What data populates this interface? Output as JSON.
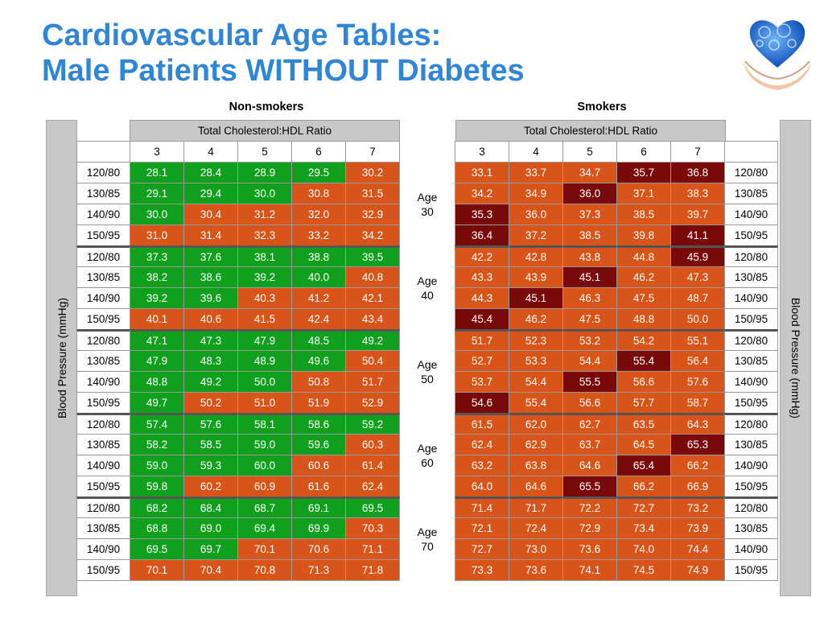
{
  "title": {
    "line1": "Cardiovascular Age Tables:",
    "line2": "Male Patients WITHOUT Diabetes"
  },
  "colors": {
    "title": "#2f86d6",
    "green": "#11a01e",
    "orange": "#d95418",
    "darkred": "#7a0a0a",
    "header_gray": "#c8c8c8"
  },
  "logo_icon": "heart-of-gears-in-hands",
  "groups": {
    "non_smokers": "Non-smokers",
    "smokers": "Smokers"
  },
  "header": {
    "ratio_label": "Total Cholesterol:HDL Ratio",
    "ratios": [
      "3",
      "4",
      "5",
      "6",
      "7"
    ]
  },
  "side_label": "Blood Pressure (mmHg)",
  "bp_levels": [
    "120/80",
    "130/85",
    "140/90",
    "150/95"
  ],
  "age_label_word": "Age",
  "ages": [
    {
      "age": "30",
      "non_smokers": [
        [
          [
            "28.1",
            "g"
          ],
          [
            "28.4",
            "g"
          ],
          [
            "28.9",
            "g"
          ],
          [
            "29.5",
            "g"
          ],
          [
            "30.2",
            "o"
          ]
        ],
        [
          [
            "29.1",
            "g"
          ],
          [
            "29.4",
            "g"
          ],
          [
            "30.0",
            "g"
          ],
          [
            "30.8",
            "o"
          ],
          [
            "31.5",
            "o"
          ]
        ],
        [
          [
            "30.0",
            "g"
          ],
          [
            "30.4",
            "o"
          ],
          [
            "31.2",
            "o"
          ],
          [
            "32.0",
            "o"
          ],
          [
            "32.9",
            "o"
          ]
        ],
        [
          [
            "31.0",
            "o"
          ],
          [
            "31.4",
            "o"
          ],
          [
            "32.3",
            "o"
          ],
          [
            "33.2",
            "o"
          ],
          [
            "34.2",
            "o"
          ]
        ]
      ],
      "smokers": [
        [
          [
            "33.1",
            "o"
          ],
          [
            "33.7",
            "o"
          ],
          [
            "34.7",
            "o"
          ],
          [
            "35.7",
            "r"
          ],
          [
            "36.8",
            "r"
          ]
        ],
        [
          [
            "34.2",
            "o"
          ],
          [
            "34.9",
            "o"
          ],
          [
            "36.0",
            "r"
          ],
          [
            "37.1",
            "o"
          ],
          [
            "38.3",
            "o"
          ]
        ],
        [
          [
            "35.3",
            "r"
          ],
          [
            "36.0",
            "o"
          ],
          [
            "37.3",
            "o"
          ],
          [
            "38.5",
            "o"
          ],
          [
            "39.7",
            "o"
          ]
        ],
        [
          [
            "36.4",
            "r"
          ],
          [
            "37.2",
            "o"
          ],
          [
            "38.5",
            "o"
          ],
          [
            "39.8",
            "o"
          ],
          [
            "41.1",
            "r"
          ]
        ]
      ]
    },
    {
      "age": "40",
      "non_smokers": [
        [
          [
            "37.3",
            "g"
          ],
          [
            "37.6",
            "g"
          ],
          [
            "38.1",
            "g"
          ],
          [
            "38.8",
            "g"
          ],
          [
            "39.5",
            "g"
          ]
        ],
        [
          [
            "38.2",
            "g"
          ],
          [
            "38.6",
            "g"
          ],
          [
            "39.2",
            "g"
          ],
          [
            "40.0",
            "g"
          ],
          [
            "40.8",
            "o"
          ]
        ],
        [
          [
            "39.2",
            "g"
          ],
          [
            "39.6",
            "g"
          ],
          [
            "40.3",
            "o"
          ],
          [
            "41.2",
            "o"
          ],
          [
            "42.1",
            "o"
          ]
        ],
        [
          [
            "40.1",
            "o"
          ],
          [
            "40.6",
            "o"
          ],
          [
            "41.5",
            "o"
          ],
          [
            "42.4",
            "o"
          ],
          [
            "43.4",
            "o"
          ]
        ]
      ],
      "smokers": [
        [
          [
            "42.2",
            "o"
          ],
          [
            "42.8",
            "o"
          ],
          [
            "43.8",
            "o"
          ],
          [
            "44.8",
            "o"
          ],
          [
            "45.9",
            "r"
          ]
        ],
        [
          [
            "43.3",
            "o"
          ],
          [
            "43.9",
            "o"
          ],
          [
            "45.1",
            "r"
          ],
          [
            "46.2",
            "o"
          ],
          [
            "47.3",
            "o"
          ]
        ],
        [
          [
            "44.3",
            "o"
          ],
          [
            "45.1",
            "r"
          ],
          [
            "46.3",
            "o"
          ],
          [
            "47.5",
            "o"
          ],
          [
            "48.7",
            "o"
          ]
        ],
        [
          [
            "45.4",
            "r"
          ],
          [
            "46.2",
            "o"
          ],
          [
            "47.5",
            "o"
          ],
          [
            "48.8",
            "o"
          ],
          [
            "50.0",
            "o"
          ]
        ]
      ]
    },
    {
      "age": "50",
      "non_smokers": [
        [
          [
            "47.1",
            "g"
          ],
          [
            "47.3",
            "g"
          ],
          [
            "47.9",
            "g"
          ],
          [
            "48.5",
            "g"
          ],
          [
            "49.2",
            "g"
          ]
        ],
        [
          [
            "47.9",
            "g"
          ],
          [
            "48.3",
            "g"
          ],
          [
            "48.9",
            "g"
          ],
          [
            "49.6",
            "g"
          ],
          [
            "50.4",
            "o"
          ]
        ],
        [
          [
            "48.8",
            "g"
          ],
          [
            "49.2",
            "g"
          ],
          [
            "50.0",
            "g"
          ],
          [
            "50.8",
            "o"
          ],
          [
            "51.7",
            "o"
          ]
        ],
        [
          [
            "49.7",
            "g"
          ],
          [
            "50.2",
            "o"
          ],
          [
            "51.0",
            "o"
          ],
          [
            "51.9",
            "o"
          ],
          [
            "52.9",
            "o"
          ]
        ]
      ],
      "smokers": [
        [
          [
            "51.7",
            "o"
          ],
          [
            "52.3",
            "o"
          ],
          [
            "53.2",
            "o"
          ],
          [
            "54.2",
            "o"
          ],
          [
            "55.1",
            "o"
          ]
        ],
        [
          [
            "52.7",
            "o"
          ],
          [
            "53.3",
            "o"
          ],
          [
            "54.4",
            "o"
          ],
          [
            "55.4",
            "r"
          ],
          [
            "56.4",
            "o"
          ]
        ],
        [
          [
            "53.7",
            "o"
          ],
          [
            "54.4",
            "o"
          ],
          [
            "55.5",
            "r"
          ],
          [
            "56.6",
            "o"
          ],
          [
            "57.6",
            "o"
          ]
        ],
        [
          [
            "54.6",
            "r"
          ],
          [
            "55.4",
            "o"
          ],
          [
            "56.6",
            "o"
          ],
          [
            "57.7",
            "o"
          ],
          [
            "58.7",
            "o"
          ]
        ]
      ]
    },
    {
      "age": "60",
      "non_smokers": [
        [
          [
            "57.4",
            "g"
          ],
          [
            "57.6",
            "g"
          ],
          [
            "58.1",
            "g"
          ],
          [
            "58.6",
            "g"
          ],
          [
            "59.2",
            "g"
          ]
        ],
        [
          [
            "58.2",
            "g"
          ],
          [
            "58.5",
            "g"
          ],
          [
            "59.0",
            "g"
          ],
          [
            "59.6",
            "g"
          ],
          [
            "60.3",
            "o"
          ]
        ],
        [
          [
            "59.0",
            "g"
          ],
          [
            "59.3",
            "g"
          ],
          [
            "60.0",
            "g"
          ],
          [
            "60.6",
            "o"
          ],
          [
            "61.4",
            "o"
          ]
        ],
        [
          [
            "59.8",
            "g"
          ],
          [
            "60.2",
            "o"
          ],
          [
            "60.9",
            "o"
          ],
          [
            "61.6",
            "o"
          ],
          [
            "62.4",
            "o"
          ]
        ]
      ],
      "smokers": [
        [
          [
            "61.5",
            "o"
          ],
          [
            "62.0",
            "o"
          ],
          [
            "62.7",
            "o"
          ],
          [
            "63.5",
            "o"
          ],
          [
            "64.3",
            "o"
          ]
        ],
        [
          [
            "62.4",
            "o"
          ],
          [
            "62.9",
            "o"
          ],
          [
            "63.7",
            "o"
          ],
          [
            "64.5",
            "o"
          ],
          [
            "65.3",
            "r"
          ]
        ],
        [
          [
            "63.2",
            "o"
          ],
          [
            "63.8",
            "o"
          ],
          [
            "64.6",
            "o"
          ],
          [
            "65.4",
            "r"
          ],
          [
            "66.2",
            "o"
          ]
        ],
        [
          [
            "64.0",
            "o"
          ],
          [
            "64.6",
            "o"
          ],
          [
            "65.5",
            "r"
          ],
          [
            "66.2",
            "o"
          ],
          [
            "66.9",
            "o"
          ]
        ]
      ]
    },
    {
      "age": "70",
      "non_smokers": [
        [
          [
            "68.2",
            "g"
          ],
          [
            "68.4",
            "g"
          ],
          [
            "68.7",
            "g"
          ],
          [
            "69.1",
            "g"
          ],
          [
            "69.5",
            "g"
          ]
        ],
        [
          [
            "68.8",
            "g"
          ],
          [
            "69.0",
            "g"
          ],
          [
            "69.4",
            "g"
          ],
          [
            "69.9",
            "g"
          ],
          [
            "70.3",
            "o"
          ]
        ],
        [
          [
            "69.5",
            "g"
          ],
          [
            "69.7",
            "g"
          ],
          [
            "70.1",
            "o"
          ],
          [
            "70.6",
            "o"
          ],
          [
            "71.1",
            "o"
          ]
        ],
        [
          [
            "70.1",
            "o"
          ],
          [
            "70.4",
            "o"
          ],
          [
            "70.8",
            "o"
          ],
          [
            "71.3",
            "o"
          ],
          [
            "71.8",
            "o"
          ]
        ]
      ],
      "smokers": [
        [
          [
            "71.4",
            "o"
          ],
          [
            "71.7",
            "o"
          ],
          [
            "72.2",
            "o"
          ],
          [
            "72.7",
            "o"
          ],
          [
            "73.2",
            "o"
          ]
        ],
        [
          [
            "72.1",
            "o"
          ],
          [
            "72.4",
            "o"
          ],
          [
            "72.9",
            "o"
          ],
          [
            "73.4",
            "o"
          ],
          [
            "73.9",
            "o"
          ]
        ],
        [
          [
            "72.7",
            "o"
          ],
          [
            "73.0",
            "o"
          ],
          [
            "73.6",
            "o"
          ],
          [
            "74.0",
            "o"
          ],
          [
            "74.4",
            "o"
          ]
        ],
        [
          [
            "73.3",
            "o"
          ],
          [
            "73.6",
            "o"
          ],
          [
            "74.1",
            "o"
          ],
          [
            "74.5",
            "o"
          ],
          [
            "74.9",
            "o"
          ]
        ]
      ]
    }
  ]
}
